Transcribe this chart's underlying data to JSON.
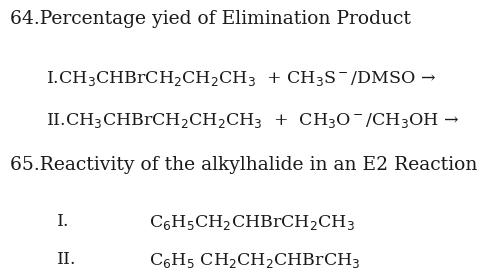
{
  "background_color": "#ffffff",
  "title1": "64.Percentage yied of Elimination Product",
  "title2": "65.Reactivity of the alkylhalide in an E2 Reaction",
  "line1_left": "I.CH$_3$CHBrCH$_2$CH$_2$CH$_3$  + CH$_3$S$^-$/DMSO →",
  "line2_left": "II.CH$_3$CHBrCH$_2$CH$_2$CH$_3$  +  CH$_3$O$^-$/CH$_3$OH →",
  "line3_roman": "I.",
  "line3_formula": "C$_6$H$_5$CH$_2$CHBrCH$_2$CH$_3$",
  "line4_roman": "II.",
  "line4_formula": "C$_6$H$_5$ CH$_2$CH$_2$CHBrCH$_3$",
  "title_fontsize": 13.5,
  "body_fontsize": 12.5,
  "text_color": "#1a1a1a"
}
